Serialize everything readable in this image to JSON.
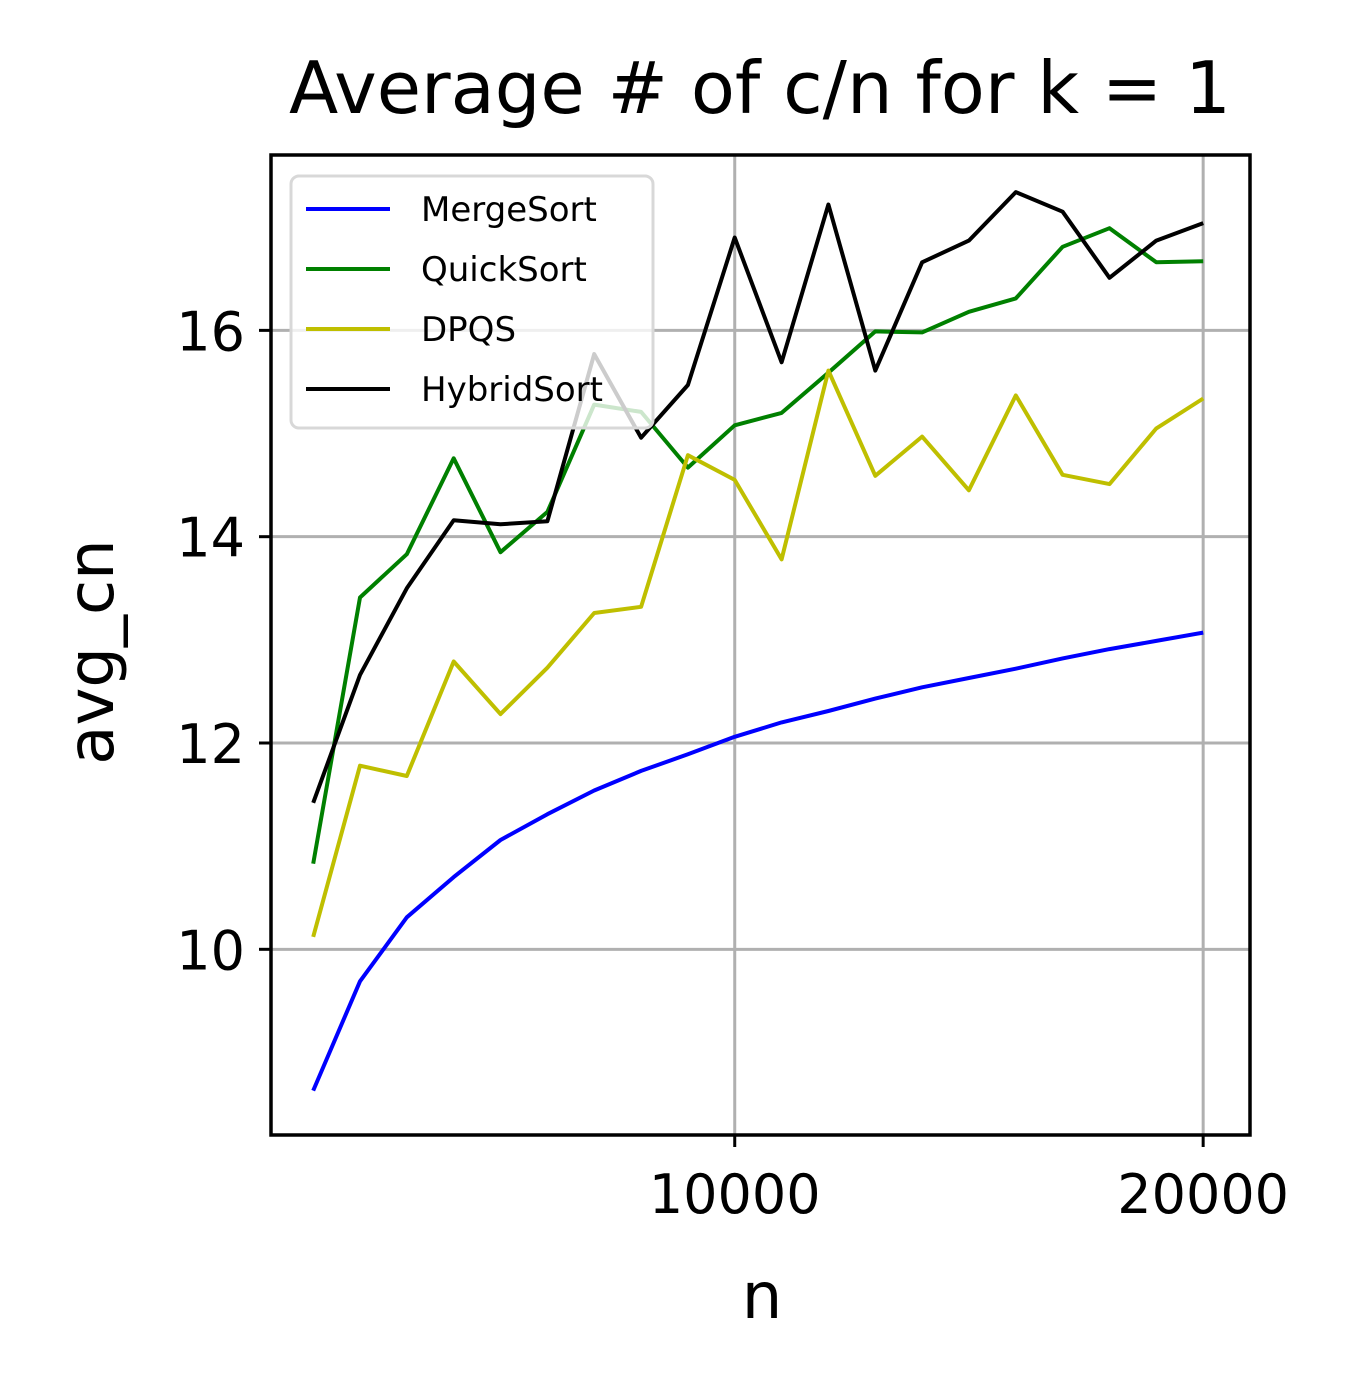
{
  "chart_data": {
    "type": "line",
    "title": "Average # of c/n for k = 1",
    "xlabel": "n",
    "ylabel": "avg_cn",
    "xlim": [
      100,
      21000
    ],
    "ylim": [
      8.2,
      17.7
    ],
    "xticks": [
      10000,
      20000
    ],
    "xtick_labels": [
      "10000",
      "20000"
    ],
    "yticks": [
      10,
      12,
      14,
      16
    ],
    "ytick_labels": [
      "10",
      "12",
      "14",
      "16"
    ],
    "grid": true,
    "legend_position": "upper-left",
    "x": [
      1000,
      2000,
      3000,
      4000,
      5000,
      6000,
      7000,
      8000,
      9000,
      10000,
      11000,
      12000,
      13000,
      14000,
      15000,
      16000,
      17000,
      18000,
      19000,
      20000
    ],
    "series": [
      {
        "name": "MergeSort",
        "color": "#0000ff",
        "values": [
          8.63,
          9.69,
          10.31,
          10.7,
          11.06,
          11.31,
          11.54,
          11.73,
          11.89,
          12.06,
          12.2,
          12.31,
          12.43,
          12.54,
          12.63,
          12.72,
          12.82,
          12.91,
          12.99,
          13.07
        ]
      },
      {
        "name": "QuickSort",
        "color": "#008000",
        "values": [
          10.83,
          13.41,
          13.83,
          14.76,
          13.85,
          14.24,
          15.28,
          15.21,
          14.67,
          15.08,
          15.2,
          15.59,
          15.99,
          15.98,
          16.18,
          16.31,
          16.81,
          16.99,
          16.66,
          16.67
        ]
      },
      {
        "name": "DPQS",
        "color": "#bfbf00",
        "values": [
          10.12,
          11.78,
          11.68,
          12.79,
          12.28,
          12.73,
          13.26,
          13.32,
          14.79,
          14.55,
          13.78,
          15.61,
          14.59,
          14.97,
          14.45,
          15.37,
          14.6,
          14.51,
          15.05,
          15.34
        ]
      },
      {
        "name": "HybridSort",
        "color": "#000000",
        "values": [
          11.42,
          12.66,
          13.5,
          14.16,
          14.12,
          14.15,
          15.77,
          14.96,
          15.47,
          16.9,
          15.69,
          17.22,
          15.61,
          16.66,
          16.87,
          17.34,
          17.15,
          16.51,
          16.87,
          17.04
        ]
      }
    ]
  }
}
